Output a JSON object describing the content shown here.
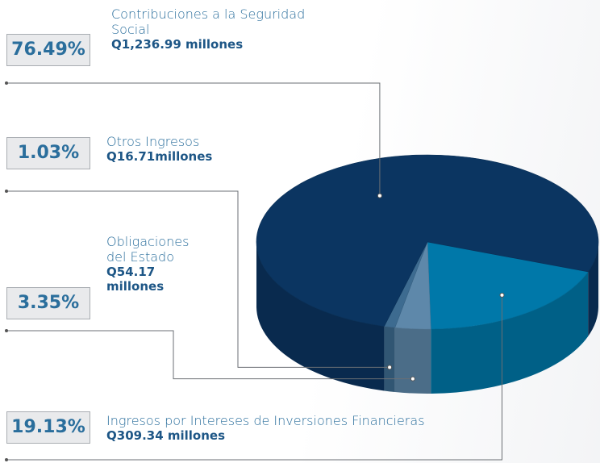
{
  "chart_data": {
    "type": "pie",
    "categories": [
      "Contribuciones a la Seguridad Social",
      "Otros Ingresos",
      "Obligaciones del Estado",
      "Ingresos por Intereses de Inversiones Financieras"
    ],
    "values": [
      76.49,
      1.03,
      3.35,
      19.13
    ],
    "value_labels": [
      "76.49%",
      "1.03%",
      "3.35%",
      "19.13%"
    ],
    "amounts": [
      "Q1,236.99 millones",
      "Q16.71millones",
      "Q54.17 millones",
      "Q309.34 millones"
    ],
    "colors": [
      "#0b3561",
      "#3d6b90",
      "#5e88aa",
      "#0078a9"
    ]
  }
}
